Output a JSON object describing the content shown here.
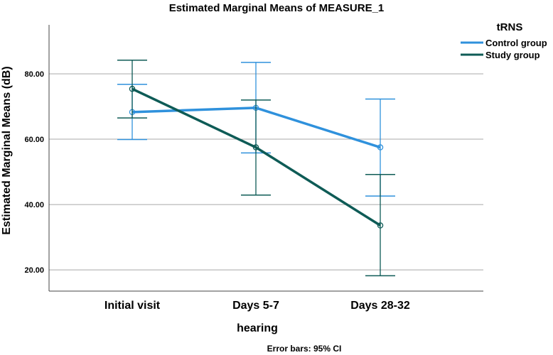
{
  "chart_data": {
    "type": "line",
    "title": "Estimated Marginal Means of MEASURE_1",
    "xlabel": "hearing",
    "ylabel": "Estimated Marginal Means (dB)",
    "categories": [
      "Initial visit",
      "Days 5-7",
      "Days 28-32"
    ],
    "yticks": [
      20,
      40,
      60,
      80
    ],
    "ytick_labels": [
      "20.00",
      "40.00",
      "60.00",
      "80.00"
    ],
    "ylim": [
      13.5,
      95
    ],
    "grid": "horizontal",
    "legend": {
      "title": "tRNS",
      "position": "top-right",
      "entries": [
        "Control group",
        "Study group"
      ]
    },
    "footnote": "Error bars: 95% CI",
    "series": [
      {
        "name": "Control group",
        "color": "#2f91dc",
        "values": [
          68.3,
          69.6,
          57.5
        ],
        "ci_lower": [
          59.9,
          55.8,
          42.6
        ],
        "ci_upper": [
          76.8,
          83.5,
          72.3
        ]
      },
      {
        "name": "Study group",
        "color": "#0e5b56",
        "values": [
          75.4,
          57.5,
          33.6
        ],
        "ci_lower": [
          66.5,
          42.9,
          18.2
        ],
        "ci_upper": [
          84.2,
          72.0,
          49.2
        ]
      }
    ]
  }
}
